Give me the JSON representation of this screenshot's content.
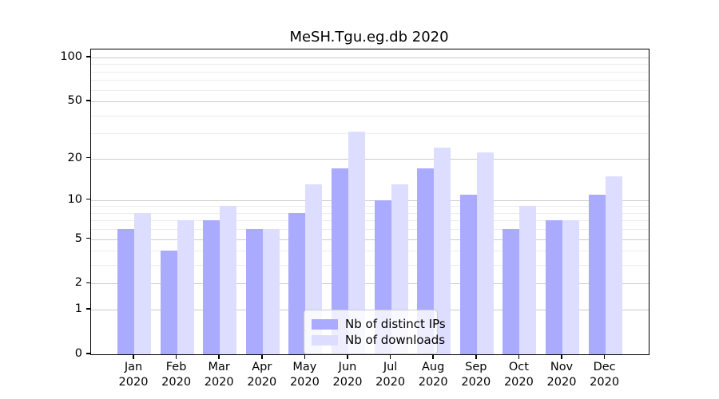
{
  "title": "MeSH.Tgu.eg.db 2020",
  "chart_data": {
    "type": "bar",
    "title": "MeSH.Tgu.eg.db 2020",
    "categories": [
      "Jan 2020",
      "Feb 2020",
      "Mar 2020",
      "Apr 2020",
      "May 2020",
      "Jun 2020",
      "Jul 2020",
      "Aug 2020",
      "Sep 2020",
      "Oct 2020",
      "Nov 2020",
      "Dec 2020"
    ],
    "series": [
      {
        "name": "Nb of distinct IPs",
        "color": "#aaaaff",
        "values": [
          6,
          4,
          7,
          6,
          8,
          17,
          10,
          17,
          11,
          6,
          7,
          11
        ]
      },
      {
        "name": "Nb of downloads",
        "color": "#ddddff",
        "values": [
          8,
          7,
          9,
          6,
          13,
          31,
          13,
          24,
          22,
          9,
          7,
          15
        ]
      }
    ],
    "xlabel": "",
    "ylabel": "",
    "yscale": "log1p",
    "ylim": [
      0,
      113
    ],
    "y_major_ticks": [
      0,
      1,
      2,
      5,
      10,
      20,
      50,
      100
    ],
    "y_minor_gridlines": [
      3,
      4,
      6,
      7,
      8,
      9,
      30,
      40,
      60,
      70,
      80,
      90
    ],
    "grid": true,
    "legend_position": "lower center"
  },
  "colors": {
    "bar_ips": "#aaaaff",
    "bar_downloads": "#ddddff",
    "grid_major": "#cccccc",
    "grid_minor": "#ececec",
    "spine": "#000000",
    "legend_border": "#cccccc"
  },
  "legend": {
    "items": [
      {
        "label": "Nb of distinct IPs",
        "color": "#aaaaff"
      },
      {
        "label": "Nb of downloads",
        "color": "#ddddff"
      }
    ]
  }
}
